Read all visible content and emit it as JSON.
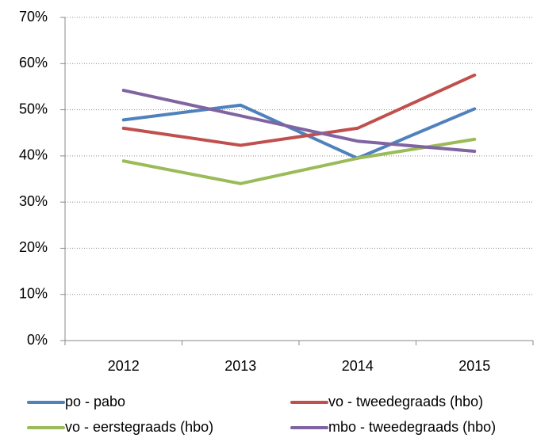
{
  "chart_data": {
    "type": "line",
    "categories": [
      "2012",
      "2013",
      "2014",
      "2015"
    ],
    "series": [
      {
        "name": "po - pabo",
        "color": "#4f81bd",
        "values": [
          47.8,
          51,
          39.5,
          50.2
        ]
      },
      {
        "name": "vo - tweedegraads (hbo)",
        "color": "#c0504d",
        "values": [
          46,
          42.3,
          46,
          57.5
        ]
      },
      {
        "name": "vo - eerstegraads (hbo)",
        "color": "#9bbb59",
        "values": [
          38.9,
          34,
          39.5,
          43.6
        ]
      },
      {
        "name": "mbo - tweedegraads (hbo)",
        "color": "#8064a2",
        "values": [
          54.2,
          48.7,
          43.2,
          41
        ]
      }
    ],
    "ylim": [
      0,
      70
    ],
    "yticks": [
      {
        "value": 0,
        "label": "0%"
      },
      {
        "value": 10,
        "label": "10%"
      },
      {
        "value": 20,
        "label": "20%"
      },
      {
        "value": 30,
        "label": "30%"
      },
      {
        "value": 40,
        "label": "40%"
      },
      {
        "value": 50,
        "label": "50%"
      },
      {
        "value": 60,
        "label": "60%"
      },
      {
        "value": 70,
        "label": "70%"
      }
    ],
    "grid": true,
    "legend": "bottom"
  }
}
